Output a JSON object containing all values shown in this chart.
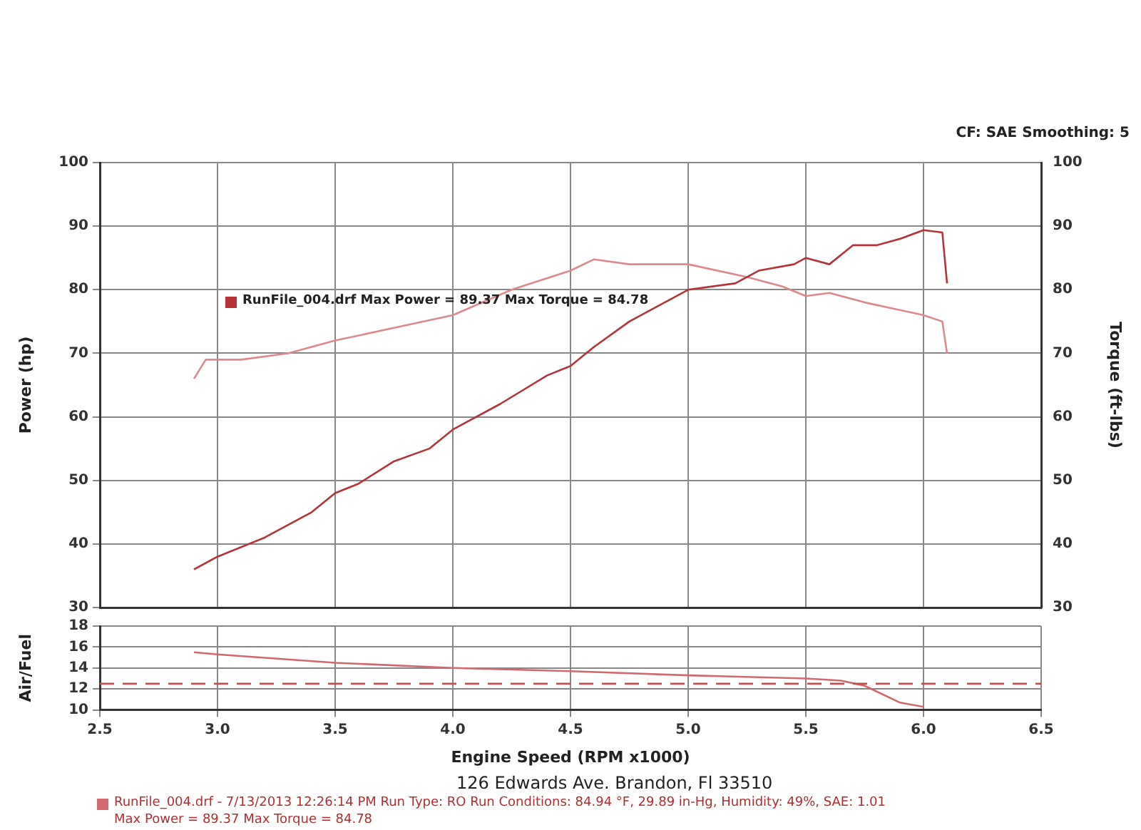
{
  "chart_data": [
    {
      "type": "line",
      "ylabel": "Power (hp)",
      "y2label": "Torque (ft-lbs)",
      "annotations": [
        "CF: SAE  Smoothing: 5",
        "RunFile_004.drf Max Power = 89.37    Max Torque = 84.78"
      ],
      "series": [
        {
          "color": "#b5343a",
          "x": [
            2.9,
            3.0,
            3.2,
            3.4,
            3.5,
            3.6,
            3.75,
            3.9,
            4.0,
            4.2,
            4.4,
            4.5,
            4.6,
            4.75,
            5.0,
            5.2,
            5.3,
            5.45,
            5.5,
            5.6,
            5.7,
            5.8,
            5.9,
            6.0,
            6.08,
            6.1
          ],
          "values": [
            36,
            38,
            41,
            45,
            48,
            49.5,
            53,
            55,
            58,
            62,
            66.5,
            68,
            71,
            75,
            80,
            81,
            83,
            84,
            85,
            84,
            87,
            87,
            88,
            89.37,
            89,
            81
          ]
        },
        {
          "color": "#dc8a8e",
          "x": [
            2.9,
            2.95,
            3.1,
            3.3,
            3.5,
            3.75,
            4.0,
            4.25,
            4.5,
            4.6,
            4.75,
            5.0,
            5.25,
            5.4,
            5.5,
            5.6,
            5.75,
            6.0,
            6.08,
            6.1
          ],
          "values": [
            66,
            69,
            69,
            70,
            72,
            74,
            76,
            80,
            83,
            84.78,
            84,
            84,
            82,
            80.5,
            79,
            79.5,
            78,
            76,
            75,
            70
          ]
        }
      ],
      "xlim": [
        2.5,
        6.5
      ],
      "xticks": [
        {
          "value": 2.5,
          "label": null
        },
        {
          "value": 3,
          "label": null
        },
        {
          "value": 3.5,
          "label": null
        },
        {
          "value": 4,
          "label": null
        },
        {
          "value": 4.5,
          "label": null
        },
        {
          "value": 5,
          "label": null
        },
        {
          "value": 5.5,
          "label": null
        },
        {
          "value": 6,
          "label": null
        },
        {
          "value": 6.5,
          "label": null
        }
      ],
      "ylim": [
        30,
        100
      ],
      "yticks": [
        30,
        40,
        50,
        60,
        70,
        80,
        90,
        100
      ],
      "y2lim": [
        30,
        100
      ],
      "y2ticks": [
        30,
        40,
        50,
        60,
        70,
        80,
        90,
        100
      ],
      "tick_labels": "y",
      "grid": true,
      "legend": false,
      "marker": "none",
      "line_style": "solid"
    },
    {
      "type": "line",
      "ylabel": "Air/Fuel",
      "xlabel": "Engine Speed (RPM x1000)",
      "annotations": [
        "126 Edwards Ave. Brandon, Fl 33510",
        "RunFile_004.drf - 7/13/2013 12:26:14 PM  Run Type: RO  Run Conditions: 84.94 °F, 29.89 in-Hg,  Humidity: 49%,  SAE: 1.01",
        "Max Power = 89.37  Max Torque = 84.78"
      ],
      "series": [
        {
          "color": "#d06a70",
          "x": [
            2.9,
            3.0,
            3.5,
            4.0,
            4.5,
            5.0,
            5.5,
            5.65,
            5.75,
            5.9,
            6.0
          ],
          "values": [
            15.5,
            15.3,
            14.5,
            14,
            13.7,
            13.3,
            13,
            12.8,
            12.3,
            10.7,
            10.3
          ]
        }
      ],
      "ref_lines": [
        {
          "axis": "y",
          "value": 12.5,
          "color": "#c0504d",
          "line_style": "dashed"
        }
      ],
      "xlim": [
        2.5,
        6.5
      ],
      "xticks": [
        2.5,
        {
          "value": 3,
          "label": "3.0"
        },
        3.5,
        {
          "value": 4,
          "label": "4.0"
        },
        4.5,
        {
          "value": 5,
          "label": "5.0"
        },
        5.5,
        {
          "value": 6,
          "label": "6.0"
        },
        6.5
      ],
      "ylim": [
        10,
        18
      ],
      "yticks": [
        10,
        12,
        14,
        16,
        18
      ],
      "grid": true,
      "legend": false,
      "marker": "none",
      "line_style": "solid"
    }
  ]
}
